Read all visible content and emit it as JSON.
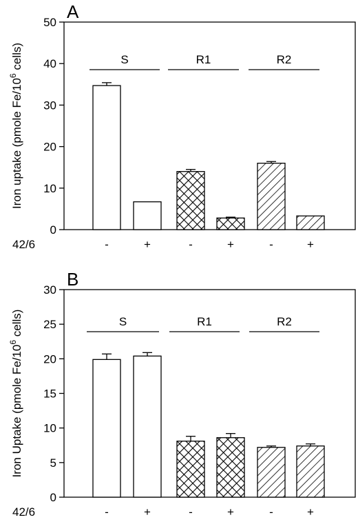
{
  "figure": {
    "treatment_label": "42/6"
  },
  "chart_data": [
    {
      "type": "bar",
      "panel_label": "A",
      "ylabel": "Iron uptake  (pmole Fe/10^6 cells)",
      "ylabel_parts": {
        "main": "Iron uptake  (pmole Fe/10",
        "sup": "6",
        "tail": " cells)"
      },
      "ylim": [
        0,
        50
      ],
      "yticks": [
        0,
        10,
        20,
        30,
        40,
        50
      ],
      "ytick_labels": [
        "0",
        "10",
        "20",
        "30",
        "40",
        "50"
      ],
      "grid": false,
      "groups": [
        {
          "label": "S",
          "pattern": "none"
        },
        {
          "label": "R1",
          "pattern": "crosshatch"
        },
        {
          "label": "R2",
          "pattern": "diagonal"
        }
      ],
      "categories": [
        "-",
        "+",
        "-",
        "+",
        "-",
        "+"
      ],
      "bars": [
        {
          "group": "S",
          "treatment": "-",
          "value": 34.7,
          "error": 0.7
        },
        {
          "group": "S",
          "treatment": "+",
          "value": 6.7,
          "error": 0
        },
        {
          "group": "R1",
          "treatment": "-",
          "value": 14.0,
          "error": 0.5
        },
        {
          "group": "R1",
          "treatment": "+",
          "value": 2.8,
          "error": 0.2
        },
        {
          "group": "R2",
          "treatment": "-",
          "value": 16.0,
          "error": 0.4
        },
        {
          "group": "R2",
          "treatment": "+",
          "value": 3.3,
          "error": 0
        }
      ]
    },
    {
      "type": "bar",
      "panel_label": "B",
      "ylabel": "Iron Uptake  (pmole Fe/10^6 cells)",
      "ylabel_parts": {
        "main": "Iron Uptake  (pmole Fe/10",
        "sup": "6",
        "tail": " cells)"
      },
      "ylim": [
        0,
        30
      ],
      "yticks": [
        0,
        5,
        10,
        15,
        20,
        25,
        30
      ],
      "ytick_labels": [
        "0",
        "5",
        "10",
        "15",
        "20",
        "25",
        "30"
      ],
      "grid": false,
      "groups": [
        {
          "label": "S",
          "pattern": "none"
        },
        {
          "label": "R1",
          "pattern": "crosshatch"
        },
        {
          "label": "R2",
          "pattern": "diagonal"
        }
      ],
      "categories": [
        "-",
        "+",
        "-",
        "+",
        "-",
        "+"
      ],
      "bars": [
        {
          "group": "S",
          "treatment": "-",
          "value": 19.9,
          "error": 0.8
        },
        {
          "group": "S",
          "treatment": "+",
          "value": 20.4,
          "error": 0.5
        },
        {
          "group": "R1",
          "treatment": "-",
          "value": 8.1,
          "error": 0.7
        },
        {
          "group": "R1",
          "treatment": "+",
          "value": 8.6,
          "error": 0.6
        },
        {
          "group": "R2",
          "treatment": "-",
          "value": 7.2,
          "error": 0.2
        },
        {
          "group": "R2",
          "treatment": "+",
          "value": 7.4,
          "error": 0.3
        }
      ]
    }
  ]
}
